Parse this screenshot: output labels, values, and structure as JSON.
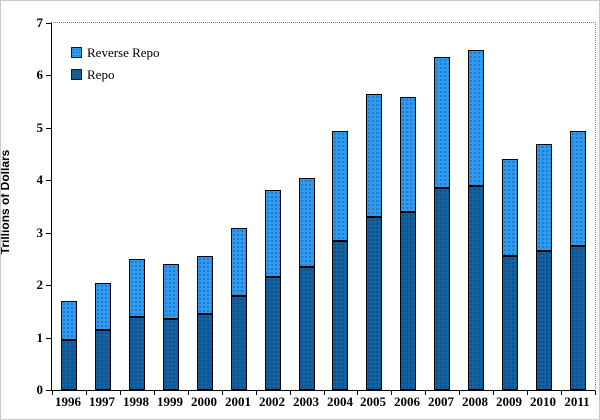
{
  "chart_data": {
    "type": "bar",
    "stacked": true,
    "title": "",
    "ylabel": "Trillions of Dollars",
    "xlabel": "",
    "ylim": [
      0,
      7
    ],
    "ytick_step": 1,
    "grid": false,
    "legend_position": "top-left-inside",
    "categories": [
      "1996",
      "1997",
      "1998",
      "1999",
      "2000",
      "2001",
      "2002",
      "2003",
      "2004",
      "2005",
      "2006",
      "2007",
      "2008",
      "2009",
      "2010",
      "2011"
    ],
    "series": [
      {
        "name": "Repo",
        "color": "#13619f",
        "values": [
          0.95,
          1.15,
          1.4,
          1.35,
          1.45,
          1.8,
          2.15,
          2.35,
          2.85,
          3.3,
          3.4,
          3.85,
          3.9,
          2.55,
          2.65,
          2.75
        ]
      },
      {
        "name": "Reverse Repo",
        "color": "#2e9af2",
        "values": [
          0.75,
          0.9,
          1.1,
          1.05,
          1.1,
          1.3,
          1.65,
          1.7,
          2.1,
          2.35,
          2.2,
          2.5,
          2.6,
          1.85,
          2.05,
          2.2
        ]
      }
    ],
    "totals": [
      1.7,
      2.05,
      2.5,
      2.4,
      2.55,
      3.1,
      3.8,
      4.05,
      4.95,
      5.65,
      5.6,
      6.35,
      6.5,
      4.4,
      4.7,
      4.95
    ]
  },
  "axes": {
    "y_ticks": [
      "0",
      "1",
      "2",
      "3",
      "4",
      "5",
      "6",
      "7"
    ]
  },
  "legend": {
    "items": [
      {
        "label": "Reverse Repo",
        "color": "#2e9af2"
      },
      {
        "label": "Repo",
        "color": "#13619f"
      }
    ]
  },
  "colors": {
    "bar_border": "#000000",
    "axis": "#000000",
    "plot_frame": "#7f7f7f",
    "page_border": "#c9c9c9",
    "background": "#ffffff"
  }
}
